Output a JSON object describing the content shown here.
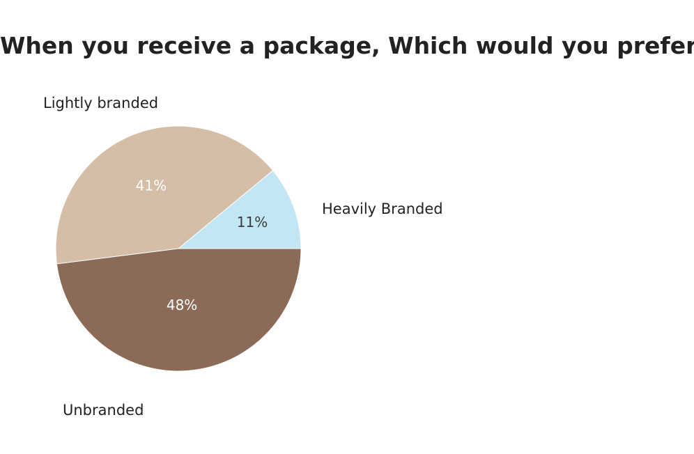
{
  "chart_data": {
    "type": "pie",
    "title": "When you receive a package, Which would you prefer?",
    "categories": [
      "Heavily Branded",
      "Lightly branded",
      "Unbranded"
    ],
    "values": [
      11,
      41,
      48
    ],
    "value_labels": [
      "11%",
      "41%",
      "48%"
    ],
    "colors": [
      "#c3e6f5",
      "#d5bea7",
      "#8b6a58"
    ],
    "label_colors": [
      "#3a3a3a",
      "#ffffff",
      "#ffffff"
    ],
    "legend": "none"
  }
}
